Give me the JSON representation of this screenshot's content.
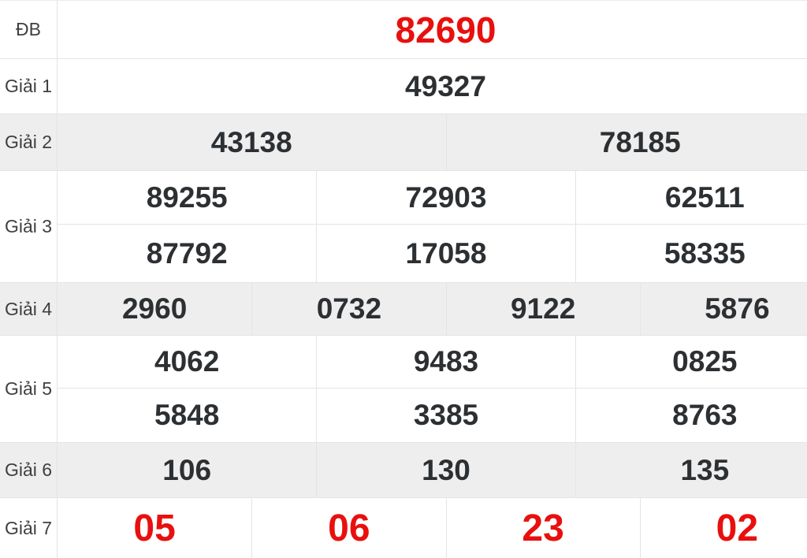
{
  "table": {
    "title": "lottery-results",
    "colors": {
      "highlight_red": "#e8100e",
      "number_dark": "#2d3033",
      "label_gray": "#3f3f3f",
      "stripe_background": "#eeeeee",
      "border": "#e4e4e4",
      "background": "#ffffff"
    },
    "rows": [
      {
        "label": "ĐB",
        "striped": false,
        "highlight": true,
        "values": [
          [
            "82690"
          ]
        ]
      },
      {
        "label": "Giải 1",
        "striped": false,
        "highlight": false,
        "values": [
          [
            "49327"
          ]
        ]
      },
      {
        "label": "Giải 2",
        "striped": true,
        "highlight": false,
        "values": [
          [
            "43138",
            "78185"
          ]
        ]
      },
      {
        "label": "Giải 3",
        "striped": false,
        "highlight": false,
        "values": [
          [
            "89255",
            "72903",
            "62511"
          ],
          [
            "87792",
            "17058",
            "58335"
          ]
        ]
      },
      {
        "label": "Giải 4",
        "striped": true,
        "highlight": false,
        "values": [
          [
            "2960",
            "0732",
            "9122",
            "5876"
          ]
        ]
      },
      {
        "label": "Giải 5",
        "striped": false,
        "highlight": false,
        "values": [
          [
            "4062",
            "9483",
            "0825"
          ],
          [
            "5848",
            "3385",
            "8763"
          ]
        ]
      },
      {
        "label": "Giải 6",
        "striped": true,
        "highlight": false,
        "values": [
          [
            "106",
            "130",
            "135"
          ]
        ]
      },
      {
        "label": "Giải 7",
        "striped": false,
        "highlight": true,
        "values": [
          [
            "05",
            "06",
            "23",
            "02"
          ]
        ]
      }
    ]
  }
}
